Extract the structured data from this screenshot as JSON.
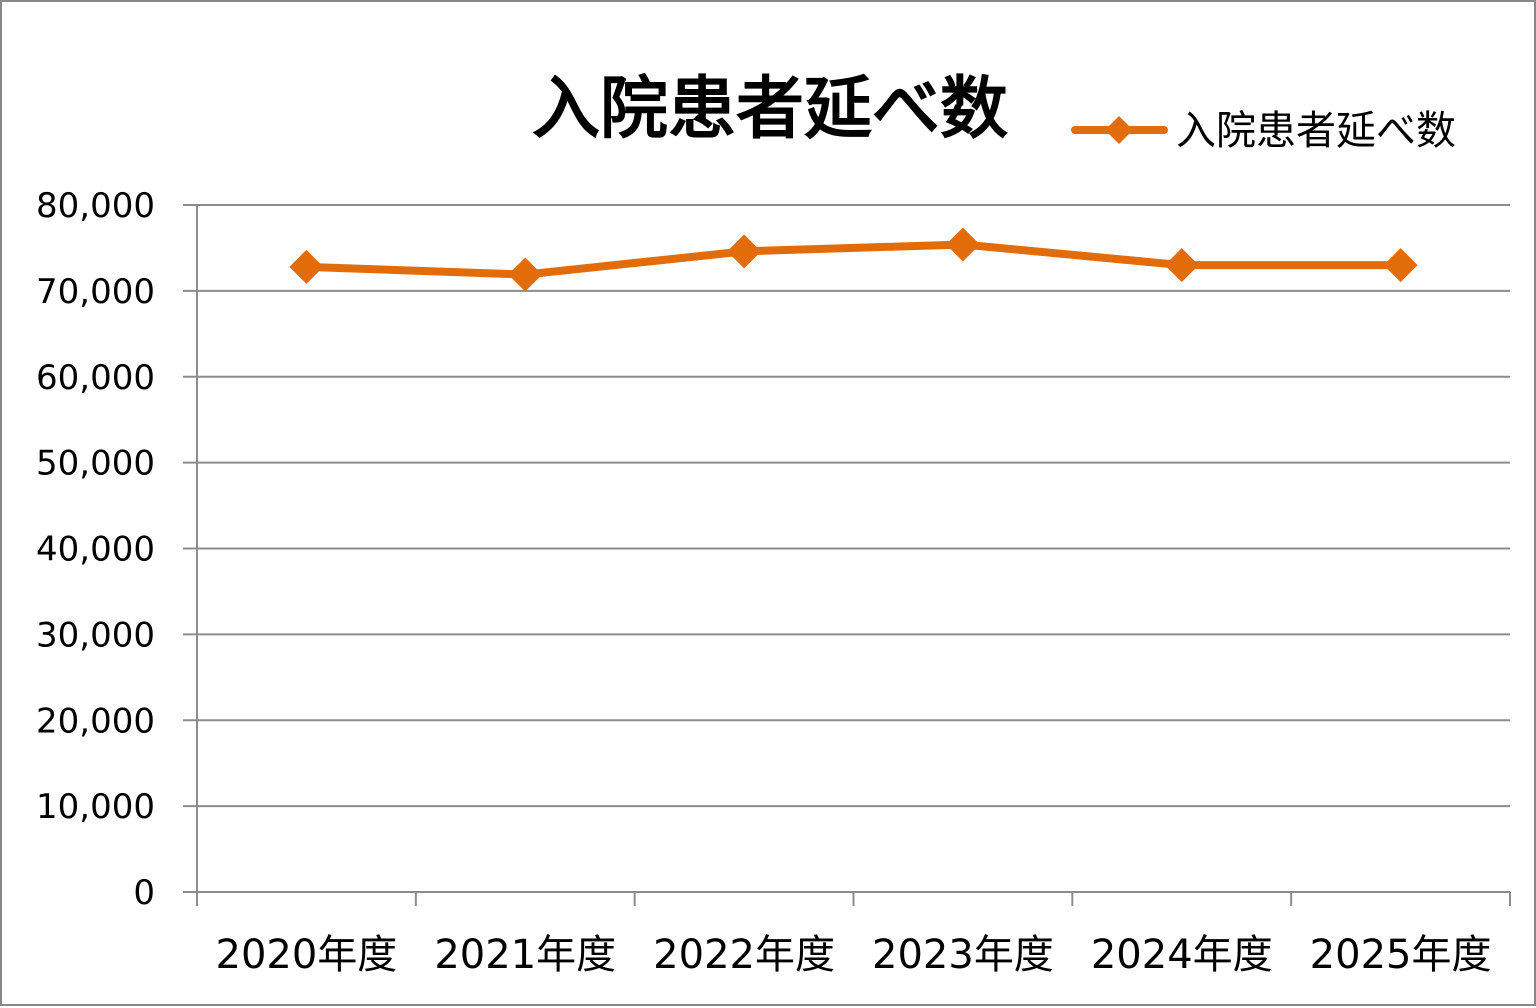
{
  "chart_data": {
    "type": "line",
    "title": "入院患者延べ数",
    "xlabel": "",
    "ylabel": "",
    "categories": [
      "2020年度",
      "2021年度",
      "2022年度",
      "2023年度",
      "2024年度",
      "2025年度"
    ],
    "series": [
      {
        "name": "入院患者延べ数",
        "values": [
          72800,
          71900,
          74600,
          75400,
          73000,
          73000
        ],
        "color": "#E36C0A",
        "marker": "diamond"
      }
    ],
    "ylim": [
      0,
      80000
    ],
    "yticks": [
      0,
      10000,
      20000,
      30000,
      40000,
      50000,
      60000,
      70000,
      80000
    ],
    "ytick_labels": [
      "0",
      "10,000",
      "20,000",
      "30,000",
      "40,000",
      "50,000",
      "60,000",
      "70,000",
      "80,000"
    ],
    "grid": true,
    "legend_position": "top-right"
  }
}
